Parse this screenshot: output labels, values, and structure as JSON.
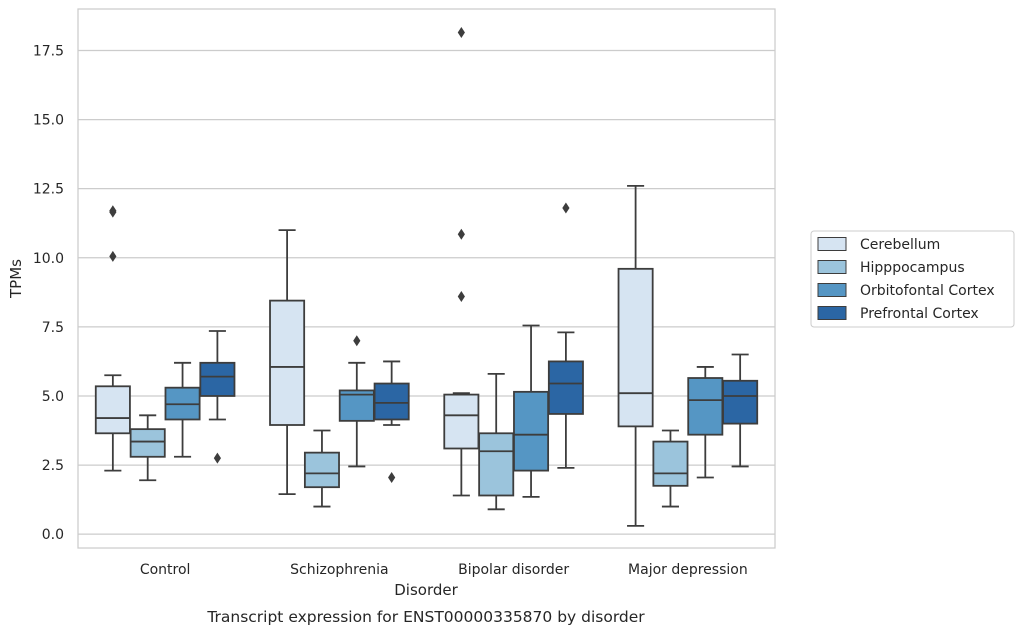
{
  "chart_data": {
    "type": "box",
    "caption": "Transcript expression for ENST00000335870 by disorder",
    "xlabel": "Disorder",
    "ylabel": "TPMs",
    "ylim": [
      -0.5,
      19.0
    ],
    "yticks": [
      "0.0",
      "2.5",
      "5.0",
      "7.5",
      "10.0",
      "12.5",
      "15.0",
      "17.5"
    ],
    "grid": "horizontal",
    "legend_position": "right",
    "categories": [
      "Control",
      "Schizophrenia",
      "Bipolar disorder",
      "Major depression"
    ],
    "series": [
      {
        "name": "Cerebellum",
        "color": "#d6e4f2",
        "boxes": [
          {
            "whislo": 2.3,
            "q1": 3.65,
            "med": 4.2,
            "q3": 5.35,
            "whishi": 5.75,
            "fliers": [
              10.05,
              11.65,
              11.7
            ]
          },
          {
            "whislo": 1.45,
            "q1": 3.95,
            "med": 6.05,
            "q3": 8.45,
            "whishi": 11.0,
            "fliers": []
          },
          {
            "whislo": 1.4,
            "q1": 3.1,
            "med": 4.3,
            "q3": 5.05,
            "whishi": 5.1,
            "fliers": [
              8.6,
              10.85,
              18.15
            ]
          },
          {
            "whislo": 0.3,
            "q1": 3.9,
            "med": 5.1,
            "q3": 9.6,
            "whishi": 12.6,
            "fliers": []
          }
        ]
      },
      {
        "name": "Hipppocampus",
        "color": "#9bc4dc",
        "boxes": [
          {
            "whislo": 1.95,
            "q1": 2.8,
            "med": 3.35,
            "q3": 3.8,
            "whishi": 4.3,
            "fliers": []
          },
          {
            "whislo": 1.0,
            "q1": 1.7,
            "med": 2.2,
            "q3": 2.95,
            "whishi": 3.75,
            "fliers": []
          },
          {
            "whislo": 0.9,
            "q1": 1.4,
            "med": 3.0,
            "q3": 3.65,
            "whishi": 5.8,
            "fliers": []
          },
          {
            "whislo": 1.0,
            "q1": 1.75,
            "med": 2.2,
            "q3": 3.35,
            "whishi": 3.75,
            "fliers": []
          }
        ]
      },
      {
        "name": "Orbitofontal Cortex",
        "color": "#5596c4",
        "boxes": [
          {
            "whislo": 2.8,
            "q1": 4.15,
            "med": 4.7,
            "q3": 5.3,
            "whishi": 6.2,
            "fliers": []
          },
          {
            "whislo": 2.45,
            "q1": 4.1,
            "med": 5.05,
            "q3": 5.2,
            "whishi": 6.2,
            "fliers": [
              7.0
            ]
          },
          {
            "whislo": 1.35,
            "q1": 2.3,
            "med": 3.6,
            "q3": 5.15,
            "whishi": 7.55,
            "fliers": []
          },
          {
            "whislo": 2.05,
            "q1": 3.6,
            "med": 4.85,
            "q3": 5.65,
            "whishi": 6.05,
            "fliers": []
          }
        ]
      },
      {
        "name": "Prefrontal Cortex",
        "color": "#2b66a4",
        "boxes": [
          {
            "whislo": 4.15,
            "q1": 5.0,
            "med": 5.7,
            "q3": 6.2,
            "whishi": 7.35,
            "fliers": [
              2.75
            ]
          },
          {
            "whislo": 3.95,
            "q1": 4.15,
            "med": 4.75,
            "q3": 5.45,
            "whishi": 6.25,
            "fliers": [
              2.05
            ]
          },
          {
            "whislo": 2.4,
            "q1": 4.35,
            "med": 5.45,
            "q3": 6.25,
            "whishi": 7.3,
            "fliers": [
              11.8
            ]
          },
          {
            "whislo": 2.45,
            "q1": 4.0,
            "med": 5.0,
            "q3": 5.55,
            "whishi": 6.5,
            "fliers": []
          }
        ]
      }
    ]
  }
}
